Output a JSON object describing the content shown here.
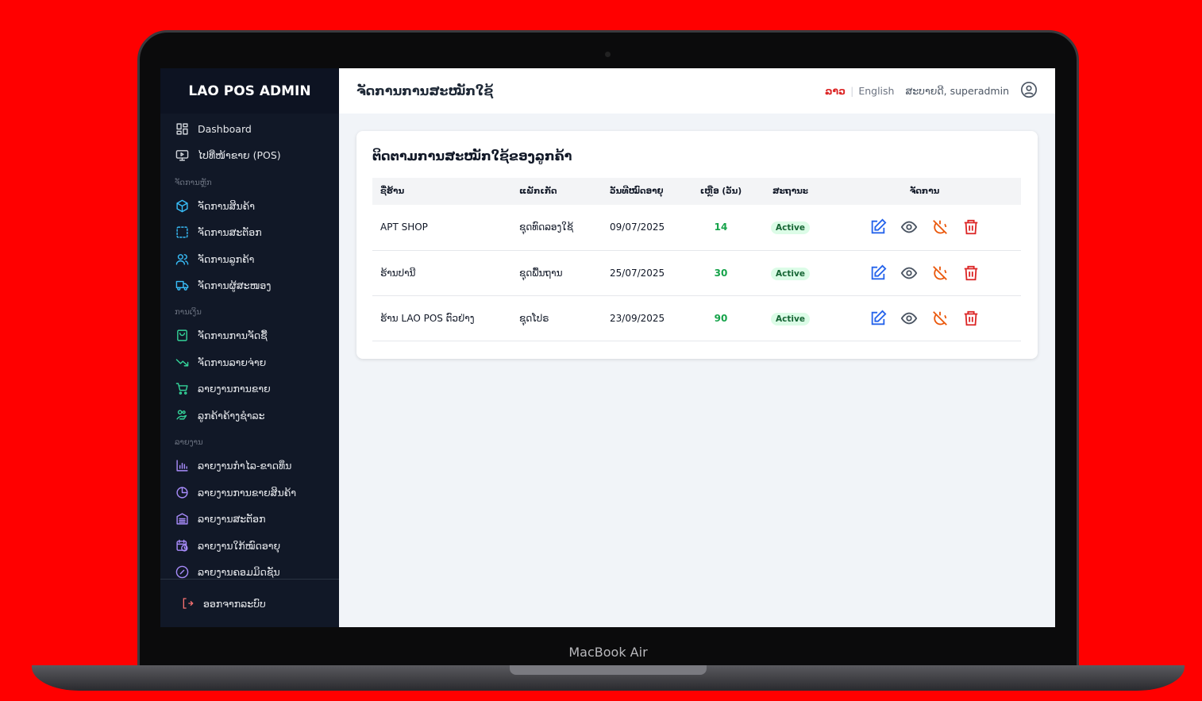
{
  "device": {
    "label": "MacBook Air"
  },
  "sidebar": {
    "logo": "LAO POS ADMIN",
    "items": [
      {
        "label": "Dashboard",
        "icon": "dashboard-icon",
        "color": "#d1d5db"
      },
      {
        "label": "ໄປທີ່ໜ້າຂາຍ (POS)",
        "icon": "monitor-play-icon",
        "color": "#d1d5db"
      },
      {
        "label": "ຈັດການສິນຄ້າ",
        "icon": "box-icon",
        "color": "#38bdf8"
      },
      {
        "label": "ຈັດການສະຕັອກ",
        "icon": "dashed-square-icon",
        "color": "#38bdf8"
      },
      {
        "label": "ຈັດການລູກຄ້າ",
        "icon": "users-icon",
        "color": "#38bdf8"
      },
      {
        "label": "ຈັດການຜູ້ສະໜອງ",
        "icon": "truck-icon",
        "color": "#38bdf8"
      },
      {
        "label": "ຈັດການການຈັດຊື້",
        "icon": "shopping-bag-icon",
        "color": "#34d399"
      },
      {
        "label": "ຈັດການລາຍຈ່າຍ",
        "icon": "trend-down-icon",
        "color": "#34d399"
      },
      {
        "label": "ລາຍງານການຂາຍ",
        "icon": "cart-icon",
        "color": "#34d399"
      },
      {
        "label": "ລູກຄ້າຄ້າງຊຳລະ",
        "icon": "hand-coins-icon",
        "color": "#34d399"
      },
      {
        "label": "ລາຍງານກຳໄລ-ຂາດທຶນ",
        "icon": "bar-chart-icon",
        "color": "#a78bfa"
      },
      {
        "label": "ລາຍງານການຂາຍສິນຄ້າ",
        "icon": "pie-chart-icon",
        "color": "#a78bfa"
      },
      {
        "label": "ລາຍງານສະຕັອກ",
        "icon": "warehouse-icon",
        "color": "#a78bfa"
      },
      {
        "label": "ລາຍງານໃກ້ໝົດອາຍຸ",
        "icon": "calendar-clock-icon",
        "color": "#a78bfa"
      },
      {
        "label": "ລາຍງານຄອມມິດຊັນ",
        "icon": "percent-icon",
        "color": "#a78bfa"
      }
    ],
    "sections": [
      "ຈັດການຫຼັກ",
      "ການເງິນ",
      "ລາຍງານ"
    ],
    "logout": "ອອກຈາກລະບົບ"
  },
  "header": {
    "title": "ຈັດການການສະໝັກໃຊ້",
    "lang_lo": "ລາວ",
    "lang_en": "English",
    "greeting": "ສະບາຍດີ, superadmin"
  },
  "card": {
    "title": "ຕິດຕາມການສະໝັກໃຊ້ຂອງລູກຄ້າ",
    "columns": [
      "ຊື່ຮ້ານ",
      "ແພັກເກັດ",
      "ວັນທີໝົດອາຍຸ",
      "ເຫຼືອ (ວັນ)",
      "ສະຖານະ",
      "ຈັດການ"
    ],
    "rows": [
      {
        "shop": "APT SHOP",
        "package": "ຊຸດທົດລອງໃຊ້",
        "expiry": "09/07/2025",
        "remaining": "14",
        "status": "Active"
      },
      {
        "shop": "ຮ້ານປານີ",
        "package": "ຊຸດພື້ນຖານ",
        "expiry": "25/07/2025",
        "remaining": "30",
        "status": "Active"
      },
      {
        "shop": "ຮ້ານ LAO POS ຕົວຢ່າງ",
        "package": "ຊຸດໂປຣ",
        "expiry": "23/09/2025",
        "remaining": "90",
        "status": "Active"
      }
    ]
  }
}
